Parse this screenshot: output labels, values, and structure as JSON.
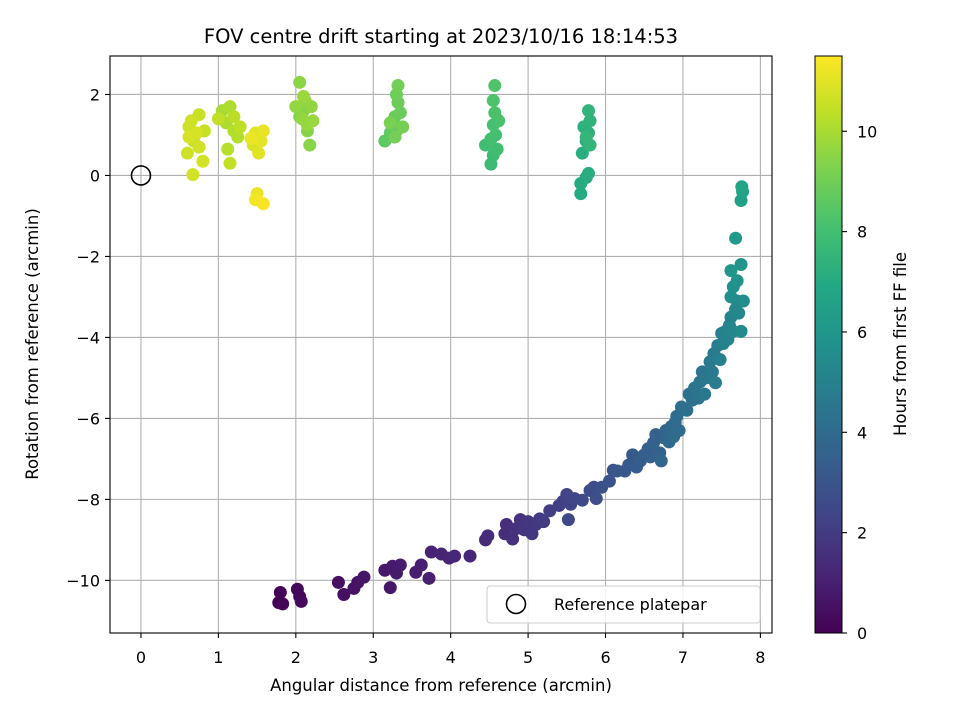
{
  "chart_data": {
    "type": "scatter",
    "title": "FOV centre drift starting at 2023/10/16 18:14:53",
    "xlabel": "Angular distance from reference (arcmin)",
    "ylabel": "Rotation from reference (arcmin)",
    "xlim": [
      -0.4,
      8.15
    ],
    "ylim": [
      -11.3,
      2.95
    ],
    "xticks": [
      0,
      1,
      2,
      3,
      4,
      5,
      6,
      7,
      8
    ],
    "yticks": [
      -10,
      -8,
      -6,
      -4,
      -2,
      0,
      2
    ],
    "grid": true,
    "colorbar": {
      "label": "Hours from first FF file",
      "range": [
        0,
        11.5
      ],
      "ticks": [
        0,
        2,
        4,
        6,
        8,
        10
      ],
      "colormap": "viridis"
    },
    "legend": {
      "position": "lower-right",
      "entries": [
        "Reference platepar"
      ]
    },
    "reference_point": {
      "x": 0,
      "y": 0,
      "label": "Reference platepar"
    },
    "points": [
      [
        1.78,
        -10.55,
        0.05
      ],
      [
        1.8,
        -10.3,
        0.1
      ],
      [
        1.83,
        -10.58,
        0.15
      ],
      [
        2.02,
        -10.22,
        0.2
      ],
      [
        2.05,
        -10.4,
        0.25
      ],
      [
        2.07,
        -10.52,
        0.3
      ],
      [
        2.55,
        -10.05,
        0.45
      ],
      [
        2.62,
        -10.35,
        0.5
      ],
      [
        2.75,
        -10.2,
        0.55
      ],
      [
        2.8,
        -10.05,
        0.6
      ],
      [
        2.88,
        -9.92,
        0.65
      ],
      [
        3.22,
        -10.18,
        0.7
      ],
      [
        3.15,
        -9.75,
        0.75
      ],
      [
        3.25,
        -9.65,
        0.8
      ],
      [
        3.3,
        -9.82,
        0.85
      ],
      [
        3.35,
        -9.62,
        0.9
      ],
      [
        3.55,
        -9.8,
        0.95
      ],
      [
        3.62,
        -9.62,
        1.0
      ],
      [
        3.72,
        -9.95,
        1.05
      ],
      [
        3.75,
        -9.3,
        1.1
      ],
      [
        3.88,
        -9.35,
        1.15
      ],
      [
        3.98,
        -9.45,
        1.2
      ],
      [
        4.05,
        -9.4,
        1.25
      ],
      [
        4.25,
        -9.4,
        1.3
      ],
      [
        4.45,
        -9.0,
        1.4
      ],
      [
        4.48,
        -8.9,
        1.45
      ],
      [
        4.7,
        -8.85,
        1.5
      ],
      [
        4.72,
        -8.62,
        1.55
      ],
      [
        4.8,
        -8.98,
        1.6
      ],
      [
        4.85,
        -8.72,
        1.65
      ],
      [
        4.9,
        -8.5,
        1.7
      ],
      [
        4.95,
        -8.75,
        1.75
      ],
      [
        5.0,
        -8.55,
        1.8
      ],
      [
        5.05,
        -8.85,
        1.85
      ],
      [
        5.1,
        -8.62,
        1.9
      ],
      [
        5.15,
        -8.48,
        1.95
      ],
      [
        5.2,
        -8.55,
        2.0
      ],
      [
        5.28,
        -8.28,
        2.05
      ],
      [
        5.4,
        -8.15,
        2.1
      ],
      [
        5.45,
        -8.05,
        2.2
      ],
      [
        5.5,
        -7.88,
        2.3
      ],
      [
        5.55,
        -8.12,
        2.35
      ],
      [
        5.6,
        -7.98,
        2.4
      ],
      [
        5.52,
        -8.5,
        2.45
      ],
      [
        5.7,
        -8.02,
        2.5
      ],
      [
        5.8,
        -7.78,
        2.6
      ],
      [
        5.85,
        -7.7,
        2.7
      ],
      [
        5.88,
        -7.98,
        2.75
      ],
      [
        5.95,
        -7.7,
        2.8
      ],
      [
        6.05,
        -7.55,
        2.9
      ],
      [
        6.1,
        -7.28,
        3.0
      ],
      [
        6.15,
        -7.3,
        3.1
      ],
      [
        6.25,
        -7.3,
        3.15
      ],
      [
        6.3,
        -7.15,
        3.2
      ],
      [
        6.35,
        -6.9,
        3.25
      ],
      [
        6.4,
        -7.2,
        3.3
      ],
      [
        6.45,
        -7.05,
        3.35
      ],
      [
        6.5,
        -6.9,
        3.4
      ],
      [
        6.55,
        -6.75,
        3.45
      ],
      [
        6.58,
        -6.95,
        3.5
      ],
      [
        6.62,
        -6.6,
        3.55
      ],
      [
        6.65,
        -6.4,
        3.6
      ],
      [
        6.7,
        -6.85,
        3.65
      ],
      [
        6.75,
        -6.48,
        3.7
      ],
      [
        6.78,
        -6.3,
        3.75
      ],
      [
        6.72,
        -7.05,
        3.8
      ],
      [
        6.82,
        -6.58,
        3.85
      ],
      [
        6.85,
        -6.2,
        3.9
      ],
      [
        6.88,
        -6.45,
        3.95
      ],
      [
        6.9,
        -6.1,
        4.0
      ],
      [
        6.92,
        -5.95,
        4.05
      ],
      [
        6.95,
        -6.3,
        4.1
      ],
      [
        6.98,
        -5.72,
        4.15
      ],
      [
        7.05,
        -5.8,
        4.2
      ],
      [
        7.08,
        -5.4,
        4.25
      ],
      [
        7.12,
        -5.55,
        4.3
      ],
      [
        7.15,
        -5.25,
        4.35
      ],
      [
        7.2,
        -5.5,
        4.4
      ],
      [
        7.22,
        -5.1,
        4.45
      ],
      [
        7.25,
        -4.85,
        4.5
      ],
      [
        7.28,
        -5.4,
        4.55
      ],
      [
        7.3,
        -5.0,
        4.6
      ],
      [
        7.35,
        -4.6,
        4.65
      ],
      [
        7.38,
        -4.85,
        4.7
      ],
      [
        7.4,
        -4.4,
        4.75
      ],
      [
        7.42,
        -5.12,
        4.8
      ],
      [
        7.45,
        -4.2,
        4.85
      ],
      [
        7.48,
        -4.55,
        4.9
      ],
      [
        7.5,
        -3.9,
        4.95
      ],
      [
        7.52,
        -4.15,
        5.0
      ],
      [
        7.55,
        -3.85,
        5.05
      ],
      [
        7.58,
        -4.05,
        5.1
      ],
      [
        7.6,
        -3.7,
        5.15
      ],
      [
        7.62,
        -3.5,
        5.2
      ],
      [
        7.65,
        -3.85,
        5.25
      ],
      [
        7.68,
        -3.3,
        5.3
      ],
      [
        7.7,
        -3.1,
        5.35
      ],
      [
        7.72,
        -3.4,
        5.4
      ],
      [
        7.75,
        -3.85,
        5.45
      ],
      [
        7.78,
        -3.1,
        5.5
      ],
      [
        7.62,
        -3.0,
        5.6
      ],
      [
        7.65,
        -2.75,
        5.7
      ],
      [
        7.7,
        -2.6,
        5.8
      ],
      [
        7.75,
        -2.2,
        5.9
      ],
      [
        7.62,
        -2.35,
        6.0
      ],
      [
        7.68,
        -1.55,
        6.2
      ],
      [
        7.75,
        -0.62,
        6.5
      ],
      [
        7.77,
        -0.4,
        6.6
      ],
      [
        7.76,
        -0.28,
        6.7
      ],
      [
        5.68,
        -0.45,
        7.0
      ],
      [
        5.68,
        -0.2,
        7.05
      ],
      [
        5.75,
        -0.05,
        7.1
      ],
      [
        5.78,
        0.05,
        7.15
      ],
      [
        5.7,
        0.55,
        7.2
      ],
      [
        5.75,
        0.85,
        7.25
      ],
      [
        5.78,
        1.05,
        7.3
      ],
      [
        5.72,
        1.2,
        7.35
      ],
      [
        5.8,
        1.35,
        7.4
      ],
      [
        5.78,
        1.6,
        7.45
      ],
      [
        5.8,
        0.75,
        7.5
      ],
      [
        5.75,
        0.95,
        7.55
      ],
      [
        4.52,
        0.28,
        7.8
      ],
      [
        4.55,
        0.5,
        7.85
      ],
      [
        4.45,
        0.75,
        7.9
      ],
      [
        4.6,
        0.65,
        7.95
      ],
      [
        4.52,
        0.9,
        8.0
      ],
      [
        4.58,
        1.0,
        8.05
      ],
      [
        4.55,
        1.25,
        8.1
      ],
      [
        4.62,
        1.35,
        8.15
      ],
      [
        4.57,
        1.55,
        8.2
      ],
      [
        4.55,
        1.85,
        8.25
      ],
      [
        4.57,
        2.22,
        8.3
      ],
      [
        3.15,
        0.85,
        8.6
      ],
      [
        3.22,
        1.05,
        8.65
      ],
      [
        3.25,
        1.25,
        8.7
      ],
      [
        3.3,
        1.1,
        8.75
      ],
      [
        3.28,
        1.45,
        8.8
      ],
      [
        3.35,
        1.55,
        8.85
      ],
      [
        3.32,
        1.8,
        8.9
      ],
      [
        3.3,
        2.0,
        8.95
      ],
      [
        3.32,
        2.22,
        9.0
      ],
      [
        3.28,
        0.95,
        9.05
      ],
      [
        3.38,
        1.2,
        9.1
      ],
      [
        3.22,
        1.3,
        9.15
      ],
      [
        2.05,
        1.45,
        9.3
      ],
      [
        2.1,
        1.6,
        9.35
      ],
      [
        2.15,
        1.1,
        9.4
      ],
      [
        2.18,
        0.75,
        9.45
      ],
      [
        2.05,
        2.3,
        9.5
      ],
      [
        2.12,
        1.85,
        9.55
      ],
      [
        2.2,
        1.7,
        9.6
      ],
      [
        2.0,
        1.7,
        9.62
      ],
      [
        2.08,
        1.4,
        9.65
      ],
      [
        2.15,
        1.25,
        9.7
      ],
      [
        2.22,
        1.35,
        9.72
      ],
      [
        2.1,
        1.95,
        9.75
      ],
      [
        1.05,
        1.6,
        10.0
      ],
      [
        1.1,
        1.3,
        10.05
      ],
      [
        1.15,
        1.7,
        10.1
      ],
      [
        1.2,
        1.1,
        10.15
      ],
      [
        1.25,
        0.95,
        10.2
      ],
      [
        1.12,
        0.65,
        10.25
      ],
      [
        1.2,
        1.45,
        10.3
      ],
      [
        1.28,
        1.2,
        10.35
      ],
      [
        1.0,
        1.4,
        10.4
      ],
      [
        1.15,
        0.3,
        10.45
      ],
      [
        0.82,
        1.1,
        10.5
      ],
      [
        0.75,
        1.5,
        10.55
      ],
      [
        0.68,
        0.85,
        10.6
      ],
      [
        0.62,
        1.2,
        10.62
      ],
      [
        0.65,
        1.35,
        10.65
      ],
      [
        0.6,
        0.55,
        10.68
      ],
      [
        0.75,
        0.7,
        10.7
      ],
      [
        0.8,
        0.35,
        10.72
      ],
      [
        0.67,
        0.02,
        10.75
      ],
      [
        0.72,
        1.05,
        10.78
      ],
      [
        0.62,
        0.95,
        10.8
      ],
      [
        1.45,
        0.75,
        10.9
      ],
      [
        1.48,
        1.05,
        10.95
      ],
      [
        1.52,
        0.55,
        11.0
      ],
      [
        1.55,
        0.85,
        11.05
      ],
      [
        1.58,
        1.1,
        11.1
      ],
      [
        1.42,
        0.92,
        11.15
      ],
      [
        1.5,
        -0.45,
        11.2
      ],
      [
        1.48,
        -0.6,
        11.3
      ],
      [
        1.58,
        -0.7,
        11.4
      ]
    ]
  }
}
